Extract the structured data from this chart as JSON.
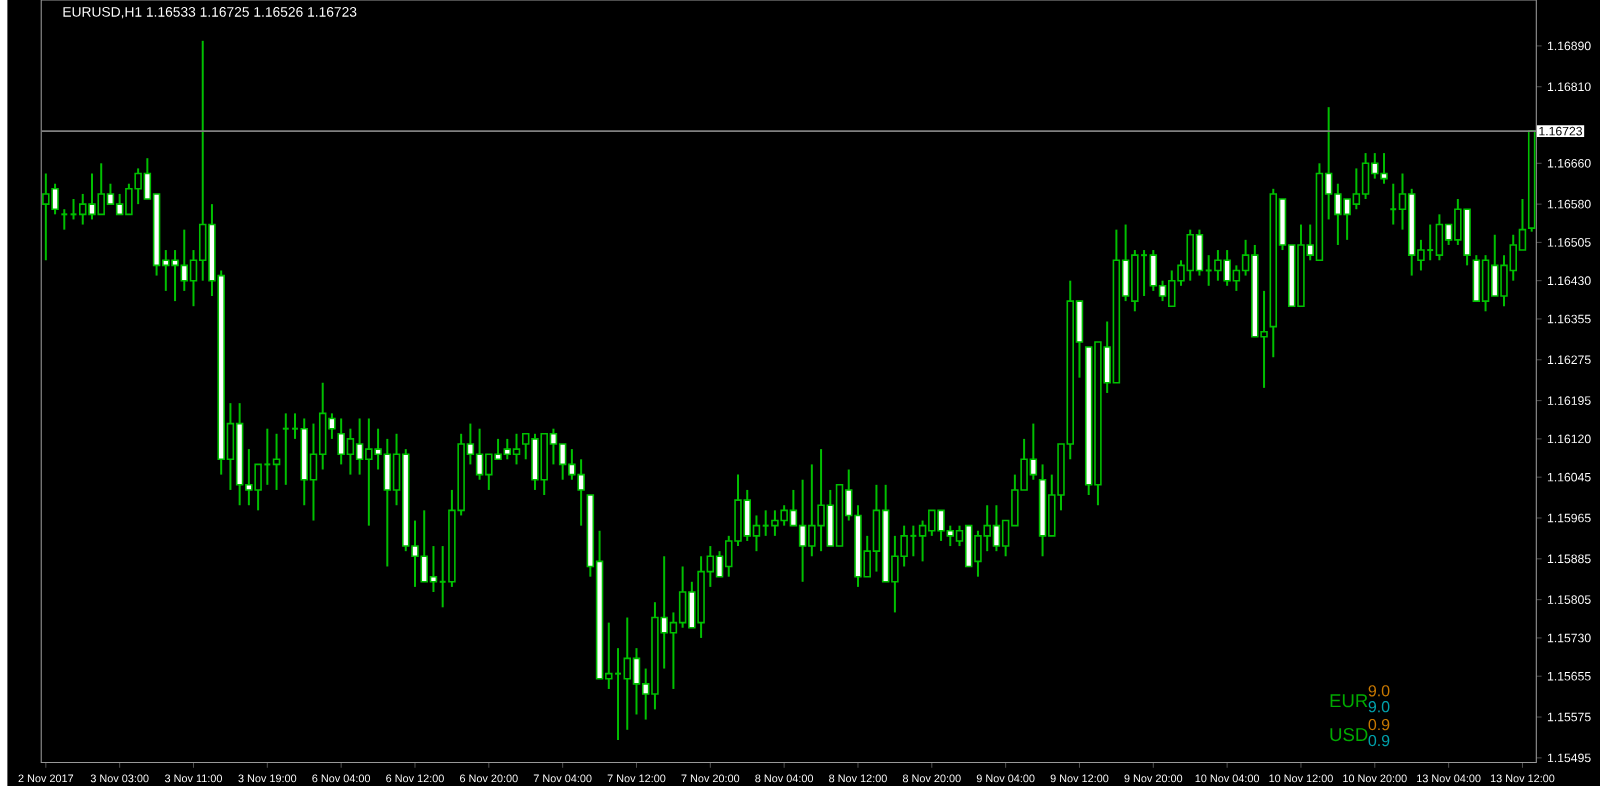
{
  "chart_data": {
    "type": "candlestick",
    "title": "EURUSD,H1  1.16533 1.16725 1.16526 1.16723",
    "color": "#00c000",
    "categories": [
      "2 Nov 2017",
      null,
      null,
      null,
      null,
      null,
      null,
      null,
      "3 Nov 03:00",
      null,
      null,
      null,
      null,
      null,
      null,
      null,
      "3 Nov 11:00",
      null,
      null,
      null,
      null,
      null,
      null,
      null,
      "3 Nov 19:00",
      null,
      null,
      null,
      null,
      null,
      null,
      null,
      "6 Nov 04:00",
      null,
      null,
      null,
      null,
      null,
      null,
      null,
      "6 Nov 12:00",
      null,
      null,
      null,
      null,
      null,
      null,
      null,
      "6 Nov 20:00",
      null,
      null,
      null,
      null,
      null,
      null,
      null,
      "7 Nov 04:00",
      null,
      null,
      null,
      null,
      null,
      null,
      null,
      "7 Nov 12:00",
      null,
      null,
      null,
      null,
      null,
      null,
      null,
      "7 Nov 20:00",
      null,
      null,
      null,
      null,
      null,
      null,
      null,
      "8 Nov 04:00",
      null,
      null,
      null,
      null,
      null,
      null,
      null,
      "8 Nov 12:00",
      null,
      null,
      null,
      null,
      null,
      null,
      null,
      "8 Nov 20:00",
      null,
      null,
      null,
      null,
      null,
      null,
      null,
      "9 Nov 04:00",
      null,
      null,
      null,
      null,
      null,
      null,
      null,
      "9 Nov 12:00",
      null,
      null,
      null,
      null,
      null,
      null,
      null,
      "9 Nov 20:00",
      null,
      null,
      null,
      null,
      null,
      null,
      null,
      "10 Nov 04:00",
      null,
      null,
      null,
      null,
      null,
      null,
      null,
      "10 Nov 12:00",
      null,
      null,
      null,
      null,
      null,
      null,
      null,
      "10 Nov 20:00",
      null,
      null,
      null,
      null,
      null,
      null,
      null,
      "13 Nov 04:00",
      null,
      null,
      null,
      null,
      null,
      null,
      null,
      "13 Nov 12:00",
      null
    ],
    "ohlc": [
      [
        1.1658,
        1.1664,
        1.1647,
        1.166
      ],
      [
        1.1661,
        1.1662,
        1.1656,
        1.1657
      ],
      [
        1.1656,
        1.1657,
        1.1653,
        1.1656
      ],
      [
        1.1656,
        1.1659,
        1.1655,
        1.1656
      ],
      [
        1.1656,
        1.166,
        1.1654,
        1.1658
      ],
      [
        1.1658,
        1.1664,
        1.1655,
        1.1656
      ],
      [
        1.1656,
        1.1666,
        1.1656,
        1.166
      ],
      [
        1.166,
        1.1662,
        1.1658,
        1.1658
      ],
      [
        1.1658,
        1.166,
        1.1656,
        1.1656
      ],
      [
        1.1656,
        1.1662,
        1.1656,
        1.1661
      ],
      [
        1.1661,
        1.1665,
        1.1658,
        1.1664
      ],
      [
        1.1664,
        1.1667,
        1.1659,
        1.1659
      ],
      [
        1.166,
        1.166,
        1.1644,
        1.1646
      ],
      [
        1.1647,
        1.1649,
        1.1641,
        1.1646
      ],
      [
        1.1647,
        1.1649,
        1.1639,
        1.1646
      ],
      [
        1.1646,
        1.1653,
        1.1641,
        1.1643
      ],
      [
        1.1643,
        1.1649,
        1.1638,
        1.1647
      ],
      [
        1.1647,
        1.169,
        1.1643,
        1.1654
      ],
      [
        1.1654,
        1.1658,
        1.164,
        1.1643
      ],
      [
        1.1644,
        1.1645,
        1.1605,
        1.1608
      ],
      [
        1.1608,
        1.1619,
        1.1602,
        1.1615
      ],
      [
        1.1615,
        1.1619,
        1.1599,
        1.1603
      ],
      [
        1.1603,
        1.161,
        1.1599,
        1.1602
      ],
      [
        1.1602,
        1.1607,
        1.1598,
        1.1607
      ],
      [
        1.1607,
        1.1614,
        1.1603,
        1.1607
      ],
      [
        1.1607,
        1.1613,
        1.1602,
        1.1608
      ],
      [
        1.1614,
        1.1617,
        1.1603,
        1.1614
      ],
      [
        1.1614,
        1.1617,
        1.1612,
        1.1614
      ],
      [
        1.1614,
        1.1616,
        1.1599,
        1.1604
      ],
      [
        1.1604,
        1.1615,
        1.1596,
        1.1609
      ],
      [
        1.1609,
        1.1623,
        1.1606,
        1.1617
      ],
      [
        1.1616,
        1.1617,
        1.1612,
        1.1614
      ],
      [
        1.1613,
        1.1616,
        1.1607,
        1.1609
      ],
      [
        1.1609,
        1.1614,
        1.1605,
        1.1612
      ],
      [
        1.1611,
        1.1616,
        1.1605,
        1.1608
      ],
      [
        1.1608,
        1.1616,
        1.1595,
        1.161
      ],
      [
        1.161,
        1.1614,
        1.1606,
        1.1609
      ],
      [
        1.1609,
        1.1612,
        1.1587,
        1.1602
      ],
      [
        1.1602,
        1.1613,
        1.1599,
        1.1609
      ],
      [
        1.1609,
        1.161,
        1.159,
        1.1591
      ],
      [
        1.1591,
        1.1596,
        1.1583,
        1.1589
      ],
      [
        1.1589,
        1.1598,
        1.1584,
        1.1584
      ],
      [
        1.1585,
        1.1591,
        1.1582,
        1.1584
      ],
      [
        1.1584,
        1.1591,
        1.1579,
        1.1584
      ],
      [
        1.1584,
        1.1602,
        1.1583,
        1.1598
      ],
      [
        1.1598,
        1.1613,
        1.1597,
        1.1611
      ],
      [
        1.1611,
        1.1615,
        1.1607,
        1.1609
      ],
      [
        1.1609,
        1.1614,
        1.1604,
        1.1605
      ],
      [
        1.1605,
        1.1609,
        1.1602,
        1.1609
      ],
      [
        1.1609,
        1.1612,
        1.1608,
        1.1608
      ],
      [
        1.161,
        1.1612,
        1.1608,
        1.1609
      ],
      [
        1.1609,
        1.1613,
        1.1607,
        1.161
      ],
      [
        1.1611,
        1.1613,
        1.1608,
        1.1613
      ],
      [
        1.1612,
        1.1613,
        1.1602,
        1.1604
      ],
      [
        1.1604,
        1.1613,
        1.1601,
        1.1613
      ],
      [
        1.1613,
        1.1614,
        1.1607,
        1.1611
      ],
      [
        1.1611,
        1.1611,
        1.1604,
        1.1607
      ],
      [
        1.1607,
        1.161,
        1.1604,
        1.1605
      ],
      [
        1.1605,
        1.1608,
        1.1595,
        1.1602
      ],
      [
        1.1601,
        1.1601,
        1.1585,
        1.1587
      ],
      [
        1.1588,
        1.1594,
        1.1565,
        1.1565
      ],
      [
        1.1565,
        1.1576,
        1.1563,
        1.1566
      ],
      [
        1.1566,
        1.1571,
        1.1553,
        1.1566
      ],
      [
        1.1565,
        1.1577,
        1.1555,
        1.1569
      ],
      [
        1.1569,
        1.1571,
        1.1558,
        1.1564
      ],
      [
        1.1564,
        1.1567,
        1.1557,
        1.1562
      ],
      [
        1.1562,
        1.158,
        1.1559,
        1.1577
      ],
      [
        1.1577,
        1.1589,
        1.1567,
        1.1574
      ],
      [
        1.1574,
        1.1578,
        1.1563,
        1.1576
      ],
      [
        1.1576,
        1.1587,
        1.1575,
        1.1582
      ],
      [
        1.1582,
        1.1584,
        1.1575,
        1.1575
      ],
      [
        1.1576,
        1.1589,
        1.1573,
        1.1586
      ],
      [
        1.1586,
        1.1591,
        1.1583,
        1.1589
      ],
      [
        1.1589,
        1.159,
        1.1585,
        1.1585
      ],
      [
        1.1587,
        1.1593,
        1.1585,
        1.1592
      ],
      [
        1.1592,
        1.1605,
        1.1591,
        1.16
      ],
      [
        1.16,
        1.1602,
        1.1592,
        1.1593
      ],
      [
        1.1593,
        1.1597,
        1.159,
        1.1595
      ],
      [
        1.1595,
        1.1598,
        1.1593,
        1.1595
      ],
      [
        1.1595,
        1.1598,
        1.1593,
        1.1596
      ],
      [
        1.1596,
        1.1599,
        1.1595,
        1.1598
      ],
      [
        1.1598,
        1.1602,
        1.1595,
        1.1595
      ],
      [
        1.1595,
        1.1604,
        1.1584,
        1.1591
      ],
      [
        1.1591,
        1.1607,
        1.1589,
        1.1595
      ],
      [
        1.1595,
        1.161,
        1.159,
        1.1599
      ],
      [
        1.1599,
        1.1602,
        1.1591,
        1.1591
      ],
      [
        1.1591,
        1.1603,
        1.1591,
        1.1603
      ],
      [
        1.1602,
        1.1606,
        1.1596,
        1.1597
      ],
      [
        1.1597,
        1.1599,
        1.1583,
        1.1585
      ],
      [
        1.1585,
        1.1593,
        1.1585,
        1.159
      ],
      [
        1.159,
        1.1603,
        1.1586,
        1.1598
      ],
      [
        1.1598,
        1.1603,
        1.1584,
        1.1584
      ],
      [
        1.1584,
        1.1593,
        1.1578,
        1.1589
      ],
      [
        1.1589,
        1.1595,
        1.1587,
        1.1593
      ],
      [
        1.1593,
        1.1595,
        1.1589,
        1.1593
      ],
      [
        1.1593,
        1.1596,
        1.1588,
        1.1595
      ],
      [
        1.1594,
        1.1598,
        1.1593,
        1.1598
      ],
      [
        1.1598,
        1.1598,
        1.1592,
        1.1594
      ],
      [
        1.1594,
        1.1595,
        1.1591,
        1.1593
      ],
      [
        1.1592,
        1.1595,
        1.1591,
        1.1594
      ],
      [
        1.1595,
        1.1595,
        1.1587,
        1.1587
      ],
      [
        1.1588,
        1.1594,
        1.1585,
        1.1593
      ],
      [
        1.1593,
        1.1599,
        1.159,
        1.1595
      ],
      [
        1.1595,
        1.1599,
        1.159,
        1.1591
      ],
      [
        1.1591,
        1.1596,
        1.1589,
        1.1596
      ],
      [
        1.1595,
        1.1605,
        1.1595,
        1.1602
      ],
      [
        1.1602,
        1.1612,
        1.1602,
        1.1608
      ],
      [
        1.1608,
        1.1615,
        1.1604,
        1.1605
      ],
      [
        1.1604,
        1.1607,
        1.1589,
        1.1593
      ],
      [
        1.1593,
        1.1605,
        1.1593,
        1.1601
      ],
      [
        1.1601,
        1.1611,
        1.1598,
        1.1611
      ],
      [
        1.1611,
        1.1643,
        1.1608,
        1.1639
      ],
      [
        1.1639,
        1.1639,
        1.1624,
        1.1631
      ],
      [
        1.163,
        1.163,
        1.1601,
        1.1603
      ],
      [
        1.1603,
        1.1631,
        1.1599,
        1.1631
      ],
      [
        1.163,
        1.1635,
        1.1621,
        1.1623
      ],
      [
        1.1623,
        1.1653,
        1.1623,
        1.1647
      ],
      [
        1.1647,
        1.1654,
        1.1639,
        1.164
      ],
      [
        1.1639,
        1.1649,
        1.1637,
        1.1648
      ],
      [
        1.1648,
        1.1649,
        1.164,
        1.1648
      ],
      [
        1.1648,
        1.1649,
        1.1641,
        1.1642
      ],
      [
        1.1642,
        1.1643,
        1.1639,
        1.164
      ],
      [
        1.1638,
        1.1645,
        1.1638,
        1.1643
      ],
      [
        1.1643,
        1.1647,
        1.1642,
        1.1646
      ],
      [
        1.1645,
        1.1653,
        1.1643,
        1.1652
      ],
      [
        1.1652,
        1.1653,
        1.1644,
        1.1645
      ],
      [
        1.1645,
        1.1648,
        1.1642,
        1.1645
      ],
      [
        1.1645,
        1.1649,
        1.1643,
        1.1647
      ],
      [
        1.1647,
        1.1649,
        1.1642,
        1.1643
      ],
      [
        1.1643,
        1.1646,
        1.1641,
        1.1645
      ],
      [
        1.1645,
        1.1651,
        1.1644,
        1.1648
      ],
      [
        1.1648,
        1.165,
        1.1632,
        1.1632
      ],
      [
        1.1632,
        1.1641,
        1.1622,
        1.1633
      ],
      [
        1.1634,
        1.1661,
        1.1628,
        1.166
      ],
      [
        1.1659,
        1.1659,
        1.1649,
        1.165
      ],
      [
        1.165,
        1.165,
        1.1638,
        1.1638
      ],
      [
        1.1638,
        1.1654,
        1.1638,
        1.165
      ],
      [
        1.165,
        1.1654,
        1.1647,
        1.1648
      ],
      [
        1.1647,
        1.1666,
        1.1647,
        1.1664
      ],
      [
        1.1664,
        1.1677,
        1.1655,
        1.166
      ],
      [
        1.166,
        1.1662,
        1.165,
        1.1656
      ],
      [
        1.1659,
        1.1659,
        1.1651,
        1.1656
      ],
      [
        1.1658,
        1.1665,
        1.1657,
        1.166
      ],
      [
        1.166,
        1.1668,
        1.1659,
        1.1666
      ],
      [
        1.1666,
        1.1668,
        1.1663,
        1.1664
      ],
      [
        1.1664,
        1.1668,
        1.1662,
        1.1663
      ],
      [
        1.1657,
        1.1662,
        1.1654,
        1.1657
      ],
      [
        1.1657,
        1.1664,
        1.1653,
        1.166
      ],
      [
        1.166,
        1.1661,
        1.1644,
        1.1648
      ],
      [
        1.1647,
        1.1651,
        1.1645,
        1.1649
      ],
      [
        1.1649,
        1.1654,
        1.1647,
        1.1649
      ],
      [
        1.1648,
        1.1656,
        1.1647,
        1.1654
      ],
      [
        1.1654,
        1.1654,
        1.165,
        1.1651
      ],
      [
        1.1651,
        1.1659,
        1.165,
        1.1657
      ],
      [
        1.1657,
        1.1657,
        1.1646,
        1.1648
      ],
      [
        1.1647,
        1.1648,
        1.1639,
        1.1639
      ],
      [
        1.1639,
        1.1648,
        1.1637,
        1.1647
      ],
      [
        1.1646,
        1.1652,
        1.164,
        1.164
      ],
      [
        1.164,
        1.1648,
        1.1638,
        1.1646
      ],
      [
        1.1645,
        1.1652,
        1.1643,
        1.165
      ],
      [
        1.1649,
        1.1659,
        1.1649,
        1.1653
      ],
      [
        1.16533,
        1.16725,
        1.16526,
        1.16723
      ]
    ],
    "colors": [
      "#000000",
      "#ffffff",
      "#00c000",
      "#00c000",
      "#000000",
      "#ffffff",
      "#000000",
      "#ffffff",
      "#ffffff",
      "#000000",
      "#000000",
      "#ffffff",
      "#ffffff",
      "#ffffff",
      "#ffffff",
      "#ffffff",
      "#000000",
      "#000000",
      "#ffffff",
      "#ffffff",
      "#000000",
      "#ffffff",
      "#ffffff",
      "#000000",
      "#00c000",
      "#000000",
      "#00c000",
      "#00c000",
      "#ffffff",
      "#000000",
      "#000000",
      "#ffffff",
      "#ffffff",
      "#000000",
      "#ffffff",
      "#000000",
      "#ffffff",
      "#ffffff",
      "#000000",
      "#ffffff",
      "#ffffff",
      "#ffffff",
      "#ffffff",
      "#00c000",
      "#000000",
      "#000000",
      "#ffffff",
      "#ffffff",
      "#000000",
      "#ffffff",
      "#ffffff",
      "#000000",
      "#000000",
      "#ffffff",
      "#000000",
      "#ffffff",
      "#ffffff",
      "#ffffff",
      "#ffffff",
      "#ffffff",
      "#ffffff",
      "#000000",
      "#00c000",
      "#000000",
      "#ffffff",
      "#ffffff",
      "#000000",
      "#ffffff",
      "#000000",
      "#000000",
      "#ffffff",
      "#000000",
      "#000000",
      "#ffffff",
      "#000000",
      "#000000",
      "#ffffff",
      "#000000",
      "#00c000",
      "#000000",
      "#000000",
      "#ffffff",
      "#ffffff",
      "#000000",
      "#000000",
      "#ffffff",
      "#000000",
      "#ffffff",
      "#ffffff",
      "#000000",
      "#000000",
      "#ffffff",
      "#000000",
      "#000000",
      "#00c000",
      "#000000",
      "#000000",
      "#ffffff",
      "#ffffff",
      "#000000",
      "#ffffff",
      "#000000",
      "#000000",
      "#ffffff",
      "#000000",
      "#000000",
      "#000000",
      "#ffffff",
      "#ffffff",
      "#000000",
      "#000000",
      "#000000",
      "#ffffff",
      "#ffffff",
      "#000000",
      "#ffffff",
      "#000000",
      "#ffffff",
      "#000000",
      "#00c000",
      "#ffffff",
      "#ffffff",
      "#000000",
      "#000000",
      "#000000",
      "#ffffff",
      "#00c000",
      "#000000",
      "#ffffff",
      "#000000",
      "#000000",
      "#ffffff",
      "#000000",
      "#000000",
      "#ffffff",
      "#ffffff",
      "#000000",
      "#ffffff",
      "#000000",
      "#ffffff",
      "#ffffff",
      "#ffffff",
      "#000000",
      "#000000",
      "#ffffff",
      "#ffffff",
      "#00c000",
      "#000000",
      "#ffffff",
      "#000000",
      "#00c000",
      "#000000",
      "#ffffff",
      "#000000",
      "#ffffff",
      "#ffffff",
      "#000000",
      "#ffffff",
      "#000000",
      "#000000",
      "#000000",
      "#000000"
    ],
    "ylim": [
      1.15486,
      1.1698
    ],
    "yticks": [
      {
        "value": 1.1689,
        "label": "1.16890"
      },
      {
        "value": 1.1681,
        "label": "1.16810"
      },
      {
        "value": 1.1666,
        "label": "1.16660"
      },
      {
        "value": 1.1658,
        "label": "1.16580"
      },
      {
        "value": 1.16505,
        "label": "1.16505"
      },
      {
        "value": 1.1643,
        "label": "1.16430"
      },
      {
        "value": 1.16355,
        "label": "1.16355"
      },
      {
        "value": 1.16275,
        "label": "1.16275"
      },
      {
        "value": 1.16195,
        "label": "1.16195"
      },
      {
        "value": 1.1612,
        "label": "1.16120"
      },
      {
        "value": 1.16045,
        "label": "1.16045"
      },
      {
        "value": 1.15965,
        "label": "1.15965"
      },
      {
        "value": 1.15885,
        "label": "1.15885"
      },
      {
        "value": 1.15805,
        "label": "1.15805"
      },
      {
        "value": 1.1573,
        "label": "1.15730"
      },
      {
        "value": 1.15655,
        "label": "1.15655"
      },
      {
        "value": 1.15575,
        "label": "1.15575"
      },
      {
        "value": 1.15495,
        "label": "1.15495"
      }
    ],
    "ref_lines": [
      {
        "axis": "y",
        "value": 1.16723,
        "label": "1.16723",
        "color": "#808080"
      }
    ],
    "annotations": [
      "EUR",
      "9.0",
      "9.0",
      "USD",
      "0.9",
      "0.9"
    ]
  }
}
